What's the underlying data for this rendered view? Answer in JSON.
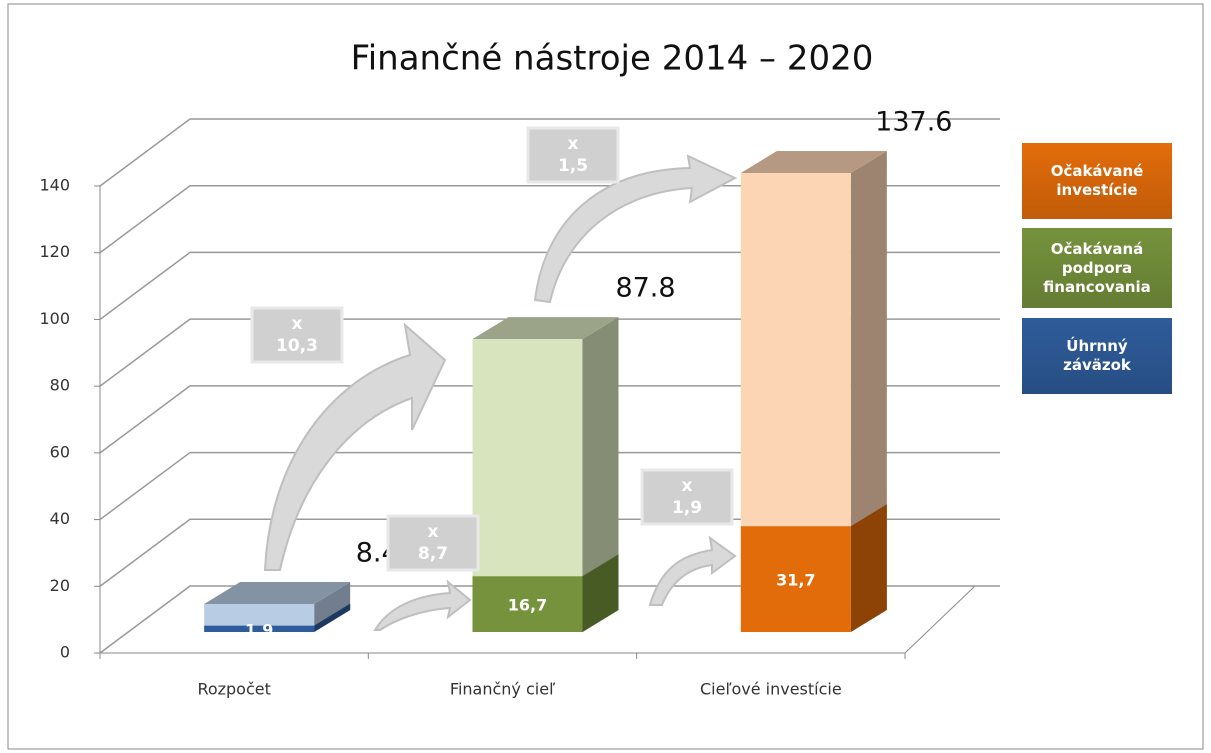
{
  "chart_data": {
    "type": "bar3d",
    "title": "Finančné nástroje 2014 – 2020",
    "categories": [
      "Rozpočet",
      "Finančný cieľ",
      "Cieľové investície"
    ],
    "series": [
      {
        "name": "Úhrnný záväzok",
        "color": "#2e5c9a",
        "values": [
          1.9,
          null,
          null
        ],
        "value_labels": [
          "1,9",
          null,
          null
        ]
      },
      {
        "name": "Očakávaná podpora financovania",
        "color": "#76923c",
        "values": [
          null,
          16.7,
          null
        ],
        "value_labels": [
          null,
          "16,7",
          null
        ]
      },
      {
        "name": "Očakávané investície",
        "color": "#e36c0a",
        "values": [
          null,
          null,
          31.7
        ],
        "value_labels": [
          null,
          null,
          "31,7"
        ]
      }
    ],
    "totals": [
      8.4,
      87.8,
      137.6
    ],
    "total_colors": [
      "#b8cce4",
      "#d7e4bd",
      "#fcd5b5"
    ],
    "annotations": [
      {
        "lines": [
          "x",
          "10,3"
        ]
      },
      {
        "lines": [
          "x",
          "8,7"
        ]
      },
      {
        "lines": [
          "x",
          "1,5"
        ]
      },
      {
        "lines": [
          "x",
          "1,9"
        ]
      }
    ],
    "ylim": [
      0,
      140
    ],
    "yticks": [
      0,
      20,
      40,
      60,
      80,
      100,
      120,
      140
    ],
    "grid": true,
    "legend": "right"
  }
}
